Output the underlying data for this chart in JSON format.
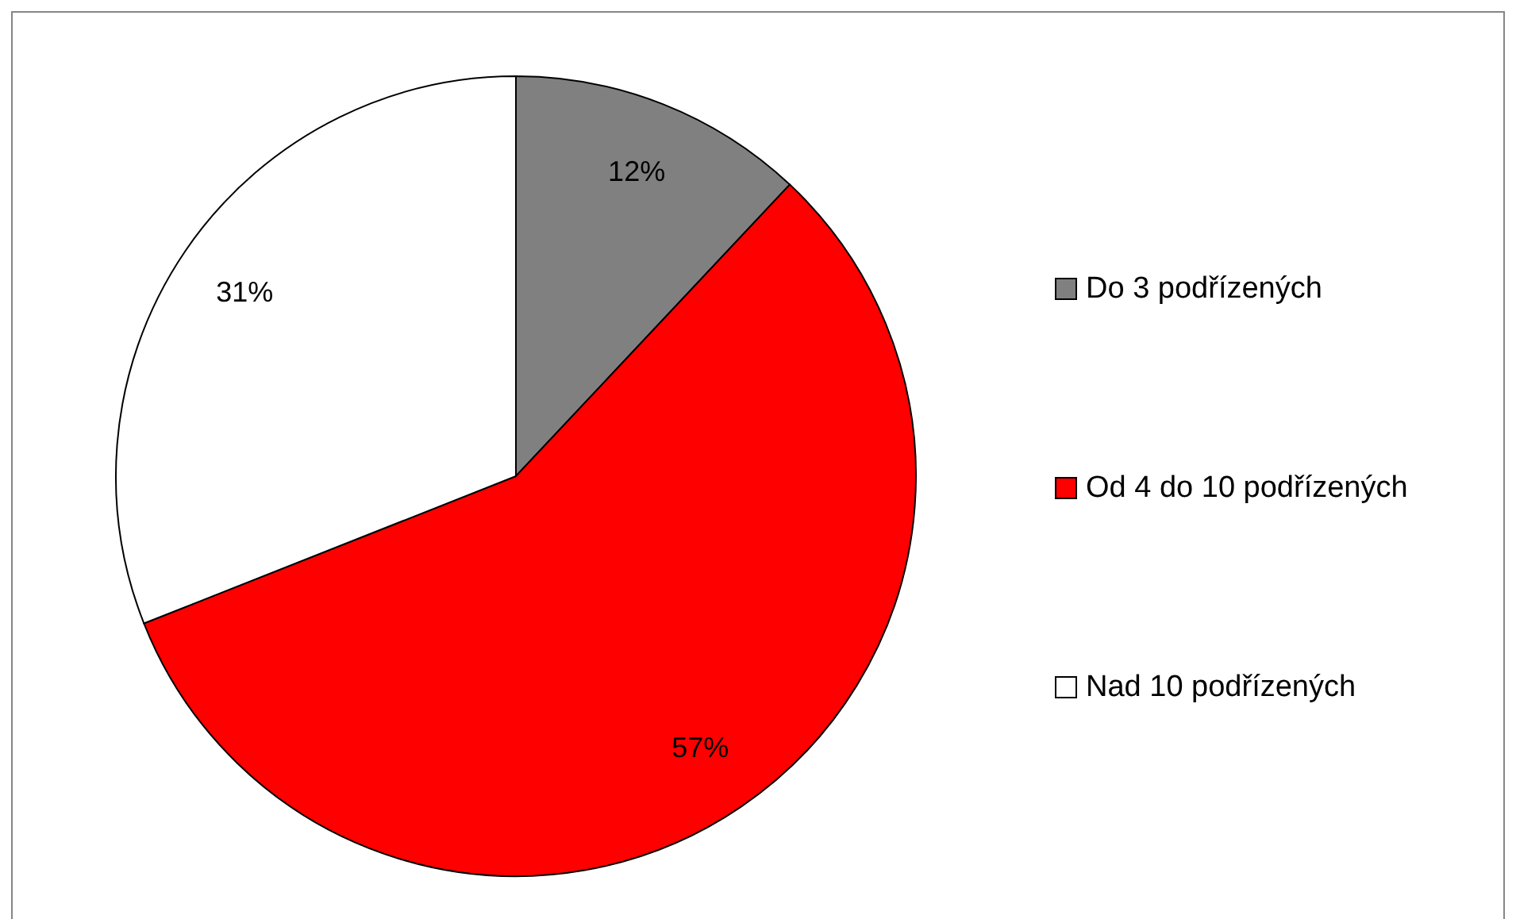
{
  "chart_data": {
    "type": "pie",
    "categories": [
      "Do 3 podřízených",
      "Od 4 do 10 podřízených",
      "Nad 10 podřízených"
    ],
    "values": [
      12,
      57,
      31
    ],
    "colors": [
      "#808080",
      "#ff0000",
      "#ffffff"
    ],
    "value_labels": [
      "12%",
      "57%",
      "31%"
    ],
    "legend": "right"
  }
}
